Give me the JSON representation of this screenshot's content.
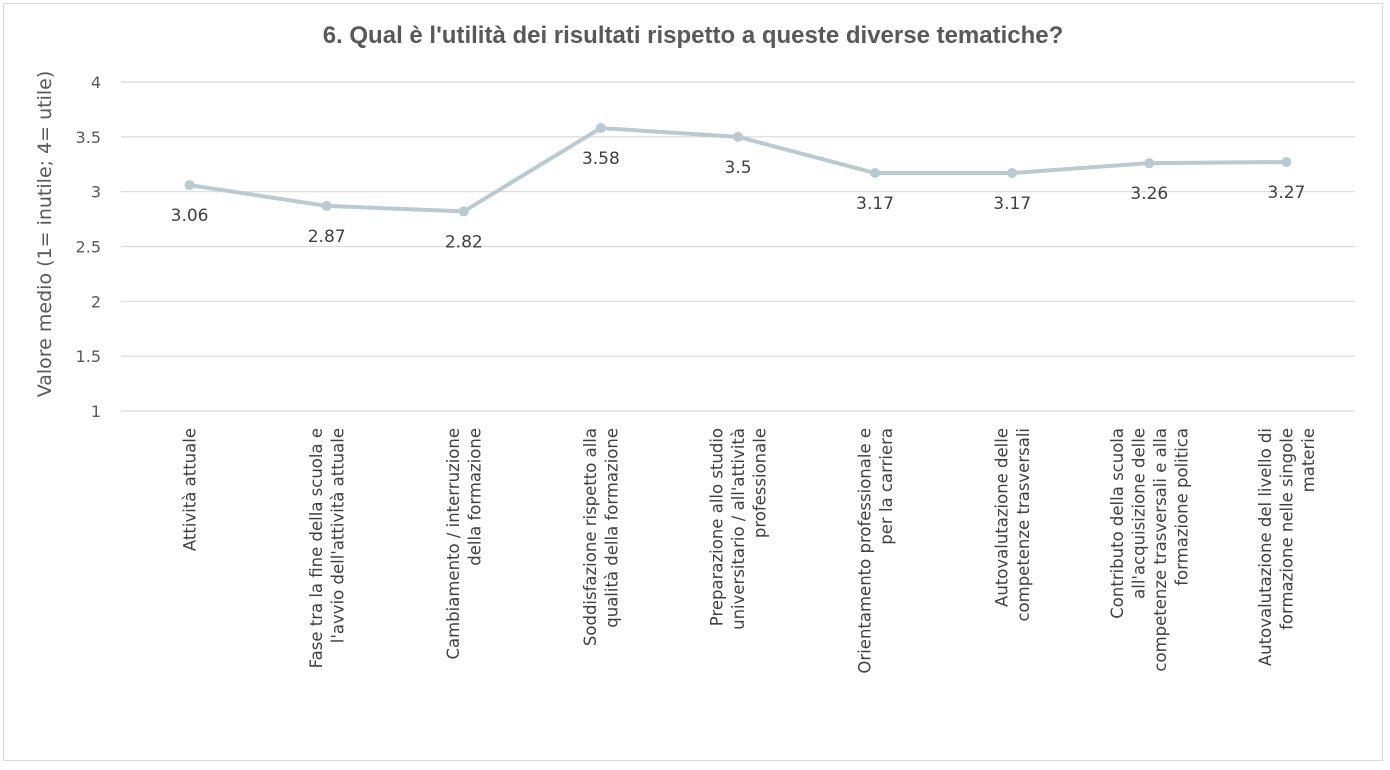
{
  "chart_data": {
    "type": "line",
    "title": "6. Qual è l'utilità dei risultati rispetto a queste diverse tematiche?",
    "ylabel": "Valore medio (1= inutile; 4= utile)",
    "xlabel": "",
    "ylim": [
      1,
      4
    ],
    "yticks": [
      "1",
      "1.5",
      "2",
      "2.5",
      "3",
      "3.5",
      "4"
    ],
    "grid": true,
    "line_color": "#b8cbd3",
    "categories": [
      [
        "Attività attuale"
      ],
      [
        "Fase tra la fine della scuola e",
        "l'avvio dell'attività attuale"
      ],
      [
        "Cambiamento / interruzione",
        "della formazione"
      ],
      [
        "Soddisfazione rispetto alla",
        "qualità della formazione"
      ],
      [
        "Preparazione allo studio",
        "universitario / all'attività",
        "professionale"
      ],
      [
        "Orientamento professionale e",
        "per la carriera"
      ],
      [
        "Autovalutazione delle",
        "competenze trasversali"
      ],
      [
        "Contributo della scuola",
        "all'acquisizione delle",
        "competenze trasversali e alla",
        "formazione politica"
      ],
      [
        "Autovalutazione del livello di",
        "formazione nelle singole",
        "materie"
      ]
    ],
    "series": [
      {
        "values": [
          3.06,
          2.87,
          2.82,
          3.58,
          3.5,
          3.17,
          3.17,
          3.26,
          3.27
        ],
        "labels": [
          "3.06",
          "2.87",
          "2.82",
          "3.58",
          "3.5",
          "3.17",
          "3.17",
          "3.26",
          "3.27"
        ]
      }
    ]
  }
}
